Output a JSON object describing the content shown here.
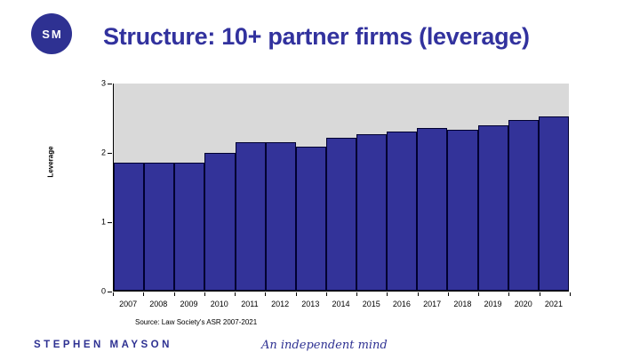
{
  "logo": {
    "text": "SM"
  },
  "title": "Structure: 10+ partner firms (leverage)",
  "chart_data": {
    "type": "bar",
    "categories": [
      "2007",
      "2008",
      "2009",
      "2010",
      "2011",
      "2012",
      "2013",
      "2014",
      "2015",
      "2016",
      "2017",
      "2018",
      "2019",
      "2020",
      "2021"
    ],
    "values": [
      1.85,
      1.86,
      1.86,
      1.99,
      2.15,
      2.15,
      2.08,
      2.21,
      2.27,
      2.31,
      2.36,
      2.33,
      2.39,
      2.47,
      2.53
    ],
    "title": "",
    "xlabel": "",
    "ylabel": "Leverage",
    "ylim": [
      0,
      3
    ],
    "yticks": [
      0,
      1,
      2,
      3
    ],
    "grid": false,
    "legend": "none",
    "bar_color": "#333399",
    "bar_border_color": "#000030",
    "plot_bg_color": "#d9d9d9",
    "axis_color": "#000000"
  },
  "source": "Source: Law Society's ASR 2007-2021",
  "footer": {
    "brand": "STEPHEN MAYSON",
    "tagline": "An independent mind"
  },
  "colors": {
    "accent": "#2e3192",
    "title_text": "#32329e",
    "background": "#ffffff"
  }
}
